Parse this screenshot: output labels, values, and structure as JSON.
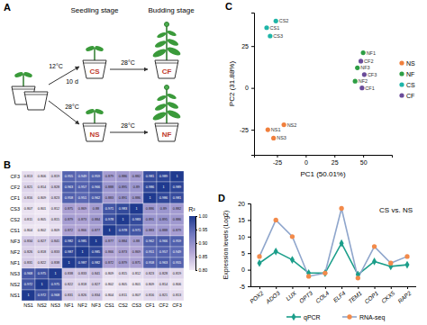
{
  "diagram": {
    "label": "A",
    "stages": [
      "Seedling stage",
      "Budding stage"
    ],
    "conditions": [
      {
        "from_temp": "12°C",
        "duration": "10 d",
        "seedling": "CS",
        "next_temp": "28°C",
        "budding": "CF"
      },
      {
        "from_temp": "28°C",
        "seedling": "NS",
        "next_temp": "28°C",
        "budding": "NF"
      }
    ]
  },
  "chart_data": [
    {
      "type": "heatmap",
      "label": "B",
      "x_categories": [
        "NS1",
        "NS2",
        "NS3",
        "NF1",
        "NF2",
        "NF3",
        "CS1",
        "CS2",
        "CS3",
        "CF1",
        "CF2",
        "CF3"
      ],
      "y_categories": [
        "CF3",
        "CF2",
        "CF1",
        "CS3",
        "CS2",
        "CS1",
        "NF3",
        "NF2",
        "NF1",
        "NS3",
        "NS2",
        "NS1"
      ],
      "cells": [
        [
          0.813,
          0.806,
          0.819,
          0.955,
          0.949,
          0.959,
          0.879,
          0.886,
          0.882,
          0.981,
          0.989,
          1
        ],
        [
          0.821,
          0.814,
          0.828,
          0.963,
          0.957,
          0.966,
          0.888,
          0.895,
          0.89,
          0.986,
          1,
          0.989
        ],
        [
          0.816,
          0.809,
          0.823,
          0.958,
          0.951,
          0.962,
          0.883,
          0.891,
          0.886,
          1,
          0.986,
          0.981
        ],
        [
          0.807,
          0.801,
          0.812,
          0.875,
          0.869,
          0.88,
          0.971,
          0.983,
          1,
          0.886,
          0.89,
          0.882
        ],
        [
          0.811,
          0.805,
          0.815,
          0.879,
          0.873,
          0.884,
          0.978,
          1,
          0.983,
          0.891,
          0.895,
          0.886
        ],
        [
          0.804,
          0.802,
          0.809,
          0.872,
          0.866,
          0.877,
          1,
          0.978,
          0.971,
          0.883,
          0.888,
          0.879
        ],
        [
          0.834,
          0.827,
          0.841,
          0.982,
          0.985,
          1,
          0.877,
          0.884,
          0.88,
          0.962,
          0.966,
          0.959
        ],
        [
          0.826,
          0.818,
          0.833,
          0.987,
          1,
          0.985,
          0.866,
          0.873,
          0.869,
          0.951,
          0.957,
          0.949
        ],
        [
          0.831,
          0.822,
          0.838,
          1,
          0.987,
          0.982,
          0.872,
          0.879,
          0.875,
          0.958,
          0.963,
          0.955
        ],
        [
          0.968,
          0.975,
          1,
          0.838,
          0.833,
          0.841,
          0.809,
          0.815,
          0.812,
          0.823,
          0.828,
          0.819
        ],
        [
          0.972,
          1,
          0.975,
          0.822,
          0.818,
          0.827,
          0.802,
          0.805,
          0.801,
          0.809,
          0.814,
          0.806
        ],
        [
          1,
          0.972,
          0.968,
          0.831,
          0.826,
          0.834,
          0.804,
          0.811,
          0.807,
          0.816,
          0.821,
          0.813
        ]
      ],
      "data_labels": true,
      "colors": [
        "#f1e9f4",
        "#b3a6d6",
        "#6f77bf",
        "#1f3a8f"
      ],
      "color_range": [
        0.8,
        1.0
      ],
      "color_ticks": [
        {
          "value": 0.8,
          "label": "0.80"
        },
        {
          "value": 0.85,
          "label": "0.85"
        },
        {
          "value": 0.9,
          "label": "0.90"
        },
        {
          "value": 0.95,
          "label": "0.95"
        },
        {
          "value": 1.0,
          "label": "1.00"
        }
      ],
      "colorbar_title": "R²"
    },
    {
      "type": "scatter",
      "label": "C",
      "x_label": "PC1 (50.01%)",
      "y_label": "PC2 (31.88%)",
      "xlim": [
        -45,
        75
      ],
      "xticks": [
        -25,
        0,
        25,
        50
      ],
      "ylim": [
        -40,
        45
      ],
      "yticks": [
        -25,
        0,
        25
      ],
      "legend": "right",
      "series": [
        {
          "name": "NS",
          "color": "#f07f3c",
          "x": [
            -33,
            -19,
            -28
          ],
          "values": [
            -25,
            -22,
            -30
          ],
          "labels": [
            "NS1",
            "NS2",
            "NS3"
          ]
        },
        {
          "name": "NF",
          "color": "#2e9e44",
          "x": [
            50,
            43,
            45
          ],
          "values": [
            21,
            4,
            12
          ],
          "labels": [
            "NF1",
            "NF2",
            "NF3"
          ]
        },
        {
          "name": "CS",
          "color": "#1fb5a8",
          "x": [
            -34,
            -26,
            -31
          ],
          "values": [
            36,
            40,
            31
          ],
          "labels": [
            "CS1",
            "CS2",
            "CS3"
          ]
        },
        {
          "name": "CF",
          "color": "#6b4c9a",
          "x": [
            49,
            48,
            51
          ],
          "values": [
            0,
            16,
            8
          ],
          "labels": [
            "CF1",
            "CF2",
            "CF3"
          ]
        }
      ]
    },
    {
      "type": "line",
      "label": "D",
      "title": "CS vs. NS",
      "y_label": "Expression levels (Log2)",
      "categories": [
        "POX2",
        "ADO3",
        "LUX",
        "OPT3",
        "COL4",
        "ELF4",
        "TEM1",
        "COP1",
        "CKX5",
        "RAP2"
      ],
      "ylim": [
        -5,
        20
      ],
      "yticks": [
        -5,
        0,
        5,
        10,
        15,
        20
      ],
      "legend": "bottom",
      "series": [
        {
          "name": "qPCR",
          "color": "#1b9e8a",
          "marker": "diamond",
          "values": [
            2,
            5.5,
            3,
            -1,
            -1,
            8,
            -1.5,
            2.5,
            1,
            1.5
          ]
        },
        {
          "name": "RNA-seq",
          "color": "#8fa6cc",
          "marker": "circle",
          "colors": [
            "#f28a4a",
            "#f28a4a",
            "#f28a4a",
            "#f28a4a",
            "#f28a4a",
            "#f28a4a",
            "#f28a4a",
            "#f28a4a",
            "#f28a4a",
            "#f28a4a"
          ],
          "values": [
            4,
            15,
            10,
            -2,
            -1,
            18.5,
            -2.5,
            7,
            2,
            4
          ]
        }
      ]
    }
  ]
}
